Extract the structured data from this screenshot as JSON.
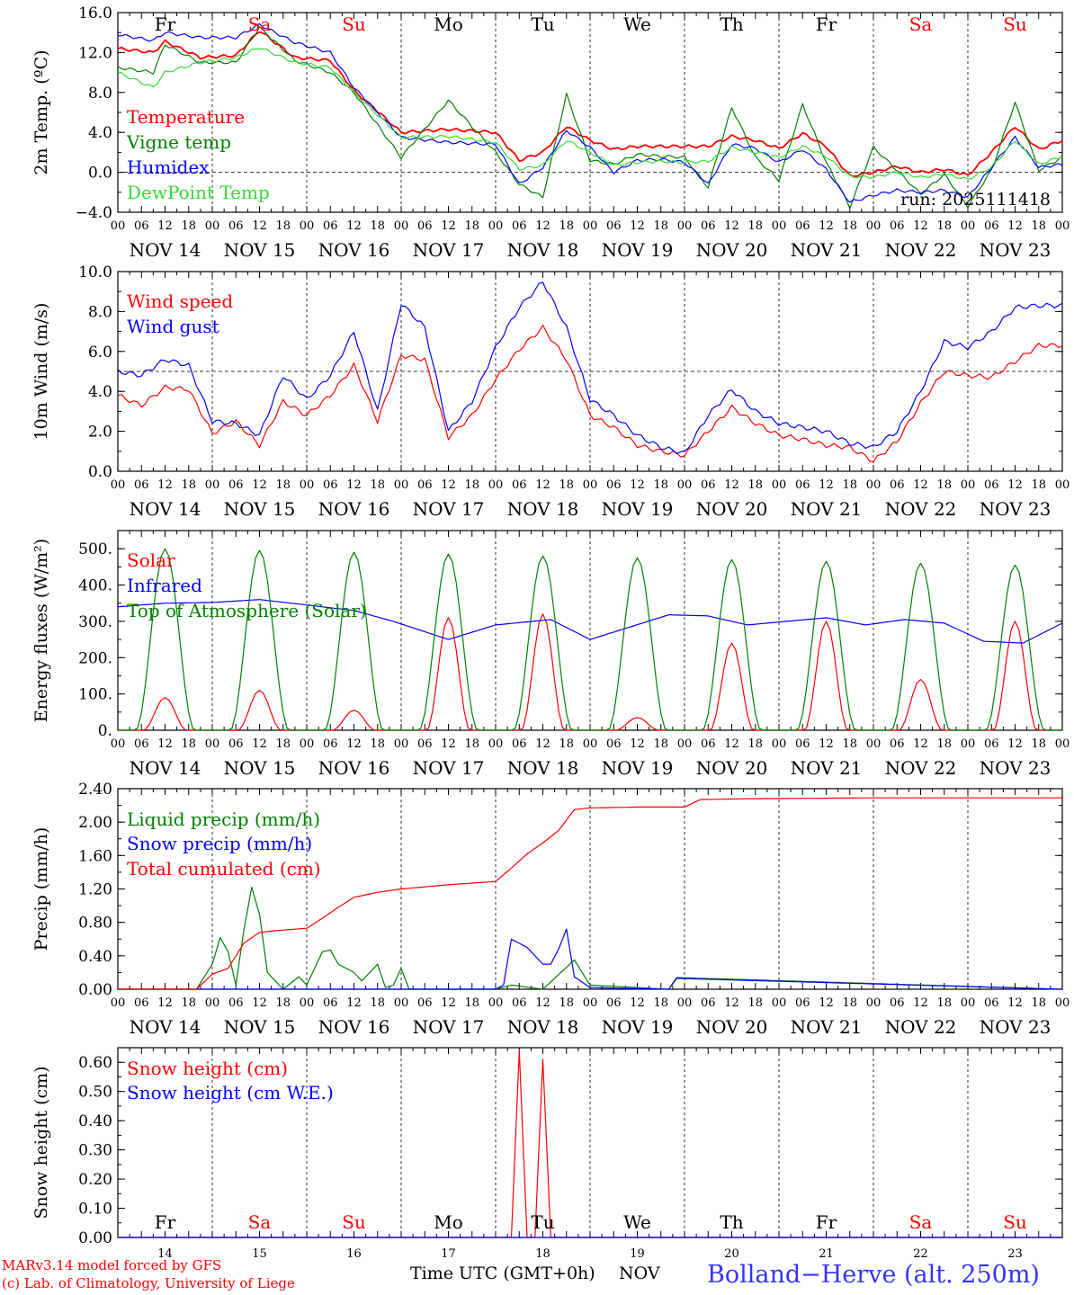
{
  "colors": {
    "red": "#ff0000",
    "green": "#008000",
    "blue": "#0000ff",
    "lime": "#33dd33",
    "black": "#000000"
  },
  "days": {
    "names": [
      "Fr",
      "Sa",
      "Su",
      "Mo",
      "Tu",
      "We",
      "Th",
      "Fr",
      "Sa",
      "Su"
    ],
    "weekend": [
      false,
      true,
      true,
      false,
      false,
      false,
      false,
      false,
      true,
      true
    ],
    "dates": [
      "NOV 14",
      "NOV 15",
      "NOV 16",
      "NOV 17",
      "NOV 18",
      "NOV 19",
      "NOV 20",
      "NOV 21",
      "NOV 22",
      "NOV 23"
    ],
    "numbers": [
      "14",
      "15",
      "16",
      "17",
      "18",
      "19",
      "20",
      "21",
      "22",
      "23"
    ],
    "hours": [
      "00",
      "06",
      "12",
      "18"
    ],
    "final_hour": "00"
  },
  "footer": {
    "model": "MARv3.14 model forced by GFS",
    "lab": "(c) Lab. of Climatology, University of Liege",
    "xlabel": "Time UTC (GMT+0h)",
    "month": "NOV",
    "station": "Bolland−Herve (alt. 250m)"
  },
  "chart_data": [
    {
      "type": "line",
      "title": "Temperature",
      "ylabel": "2m Temp. (ºC)",
      "ylim": [
        -4,
        16
      ],
      "yticks": [
        "16.0",
        "12.0",
        "8.0",
        "4.0",
        "0.0",
        "−4.0"
      ],
      "yticks_val": [
        16,
        12,
        8,
        4,
        0,
        -4
      ],
      "ref_line": 0,
      "run": "run: 2025111418",
      "x_hours": [
        0,
        9,
        12,
        21,
        30,
        36,
        45,
        54,
        60,
        72,
        84,
        96,
        102,
        108,
        114,
        120,
        126,
        132,
        138,
        144,
        150,
        156,
        162,
        168,
        174,
        180,
        186,
        192,
        198,
        204,
        210,
        216,
        222,
        228,
        234,
        240
      ],
      "series": [
        {
          "name": "Temperature",
          "color": "red",
          "values": [
            12.4,
            12.0,
            13.1,
            11.5,
            11.7,
            14.2,
            11.5,
            11.2,
            8.2,
            4.0,
            4.3,
            4.0,
            1.2,
            2.0,
            4.6,
            3.2,
            2.3,
            2.6,
            2.6,
            2.6,
            2.6,
            3.6,
            3.2,
            2.4,
            3.9,
            2.6,
            -0.4,
            0.0,
            0.6,
            0.0,
            0.3,
            -0.3,
            2.0,
            4.6,
            2.3,
            3.2
          ]
        },
        {
          "name": "Vigne temp",
          "color": "green",
          "values": [
            10.5,
            10.0,
            12.8,
            11.0,
            11.0,
            14.5,
            11.2,
            10.0,
            8.0,
            1.5,
            7.2,
            2.0,
            -1.2,
            -2.5,
            7.8,
            1.2,
            0.8,
            1.8,
            1.6,
            1.5,
            -1.5,
            6.5,
            1.5,
            -0.8,
            6.8,
            1.0,
            -3.5,
            2.5,
            0.2,
            -2.2,
            -0.2,
            -3.4,
            0.2,
            7.0,
            0.2,
            1.5
          ]
        },
        {
          "name": "Humidex",
          "color": "blue",
          "values": [
            13.8,
            13.2,
            14.0,
            13.5,
            13.5,
            14.8,
            13.0,
            12.0,
            8.5,
            3.5,
            3.0,
            2.8,
            -1.2,
            0.5,
            4.2,
            2.5,
            0.0,
            1.2,
            1.3,
            1.0,
            -1.2,
            2.8,
            2.4,
            1.0,
            2.3,
            0.3,
            -3.0,
            -2.3,
            -1.8,
            -2.0,
            -1.8,
            -2.5,
            0.5,
            3.5,
            0.5,
            0.8
          ]
        },
        {
          "name": "DewPoint Temp",
          "color": "lime",
          "values": [
            10.0,
            8.5,
            10.0,
            11.0,
            11.5,
            12.5,
            11.0,
            10.5,
            8.0,
            3.5,
            3.6,
            3.0,
            0.3,
            0.7,
            3.2,
            2.0,
            0.7,
            1.0,
            1.1,
            1.0,
            1.1,
            2.5,
            2.0,
            1.5,
            2.6,
            1.6,
            -0.4,
            -0.5,
            0.0,
            -0.5,
            -0.2,
            -0.7,
            0.5,
            3.2,
            0.8,
            1.6
          ]
        }
      ]
    },
    {
      "type": "line",
      "title": "Wind",
      "ylabel": "10m Wind (m/s)",
      "ylim": [
        0,
        10
      ],
      "yticks": [
        "10.0",
        "8.0",
        "6.0",
        "4.0",
        "2.0",
        "0.0"
      ],
      "yticks_val": [
        10,
        8,
        6,
        4,
        2,
        0
      ],
      "ref_line": 5,
      "x_hours": [
        0,
        6,
        12,
        18,
        24,
        30,
        36,
        42,
        48,
        54,
        60,
        66,
        72,
        78,
        84,
        90,
        96,
        102,
        108,
        114,
        120,
        126,
        132,
        138,
        144,
        150,
        156,
        162,
        168,
        174,
        180,
        186,
        192,
        198,
        204,
        210,
        216,
        222,
        228,
        234,
        240
      ],
      "series": [
        {
          "name": "Wind speed",
          "color": "red",
          "values": [
            3.8,
            3.3,
            4.2,
            4.1,
            1.9,
            2.5,
            1.3,
            3.5,
            2.8,
            3.8,
            5.3,
            2.5,
            5.8,
            5.6,
            1.7,
            2.8,
            4.6,
            6.1,
            7.2,
            5.6,
            2.8,
            2.2,
            1.3,
            1.0,
            0.8,
            2.0,
            3.2,
            2.4,
            1.8,
            1.6,
            1.3,
            1.2,
            0.5,
            1.5,
            3.4,
            5.0,
            4.8,
            4.7,
            5.5,
            6.3,
            6.3
          ]
        },
        {
          "name": "Wind gust",
          "color": "blue",
          "values": [
            5.0,
            4.8,
            5.6,
            5.3,
            2.5,
            2.4,
            1.8,
            4.8,
            3.6,
            4.8,
            7.0,
            3.0,
            8.4,
            7.2,
            2.0,
            3.5,
            6.2,
            8.2,
            9.5,
            7.2,
            3.6,
            2.8,
            1.8,
            1.2,
            0.9,
            2.8,
            4.1,
            3.0,
            2.4,
            2.2,
            2.0,
            1.4,
            1.2,
            2.0,
            4.0,
            6.5,
            6.2,
            7.0,
            8.2,
            8.3,
            8.3
          ]
        }
      ]
    },
    {
      "type": "line",
      "title": "Energy fluxes",
      "ylabel": "Energy fluxes (W/m²)",
      "ylim": [
        0,
        550
      ],
      "yticks": [
        "500.",
        "400.",
        "300.",
        "200.",
        "100.",
        "0."
      ],
      "yticks_val": [
        500,
        400,
        300,
        200,
        100,
        0
      ],
      "series": [
        {
          "name": "Solar",
          "color": "red",
          "peaks": [
            90,
            110,
            55,
            310,
            320,
            35,
            240,
            300,
            140,
            300
          ]
        },
        {
          "name": "Infrared",
          "color": "blue",
          "x_hours": [
            0,
            12,
            24,
            36,
            48,
            60,
            70,
            84,
            96,
            110,
            120,
            140,
            150,
            160,
            170,
            180,
            190,
            200,
            210,
            220,
            230,
            240
          ],
          "values": [
            340,
            350,
            352,
            360,
            345,
            330,
            300,
            250,
            290,
            305,
            250,
            318,
            315,
            290,
            300,
            310,
            290,
            305,
            295,
            245,
            240,
            295
          ]
        },
        {
          "name": "Top of Atmosphere (Solar)",
          "color": "green",
          "peaks": [
            500,
            495,
            490,
            485,
            480,
            475,
            470,
            465,
            460,
            455
          ]
        }
      ]
    },
    {
      "type": "line",
      "title": "Precip",
      "ylabel": "Precip (mm/h)",
      "ylim": [
        0,
        2.4
      ],
      "yticks": [
        "2.40",
        "2.00",
        "1.60",
        "1.20",
        "0.80",
        "0.40",
        "0.00"
      ],
      "yticks_val": [
        2.4,
        2.0,
        1.6,
        1.2,
        0.8,
        0.4,
        0.0
      ],
      "series": [
        {
          "name": "Liquid precip (mm/h)",
          "color": "green",
          "x_hours": [
            0,
            20,
            24,
            26,
            28,
            30,
            32,
            34,
            36,
            38,
            40,
            42,
            46,
            48,
            52,
            54,
            56,
            58,
            60,
            62,
            66,
            68,
            70,
            72,
            74,
            96,
            100,
            108,
            116,
            120,
            140,
            142,
            240
          ],
          "values": [
            0,
            0,
            0.3,
            0.62,
            0.45,
            0.05,
            0.7,
            1.22,
            0.9,
            0.2,
            0.1,
            0.0,
            0.15,
            0.05,
            0.45,
            0.47,
            0.3,
            0.25,
            0.2,
            0.1,
            0.3,
            0.02,
            0.05,
            0.25,
            0.0,
            0.0,
            0.05,
            0.0,
            0.35,
            0.05,
            0.0,
            0.14,
            0.0
          ]
        },
        {
          "name": "Snow precip (mm/h)",
          "color": "blue",
          "x_hours": [
            0,
            96,
            98,
            100,
            104,
            108,
            110,
            112,
            114,
            116,
            120,
            140,
            142,
            240
          ],
          "values": [
            0,
            0,
            0.05,
            0.6,
            0.5,
            0.3,
            0.3,
            0.48,
            0.72,
            0.15,
            0.02,
            0.0,
            0.13,
            0.0
          ]
        },
        {
          "name": "Total cumulated (cm)",
          "color": "red",
          "x_hours": [
            0,
            20,
            24,
            28,
            32,
            36,
            40,
            48,
            52,
            56,
            60,
            66,
            72,
            84,
            96,
            100,
            104,
            108,
            112,
            116,
            120,
            132,
            144,
            148,
            160,
            192,
            240
          ],
          "values": [
            0,
            0,
            0.18,
            0.25,
            0.55,
            0.68,
            0.7,
            0.73,
            0.85,
            0.98,
            1.1,
            1.16,
            1.2,
            1.25,
            1.29,
            1.45,
            1.62,
            1.75,
            1.9,
            2.15,
            2.17,
            2.18,
            2.18,
            2.27,
            2.28,
            2.29,
            2.29
          ]
        }
      ]
    },
    {
      "type": "line",
      "title": "Snow height",
      "ylabel": "Snow height (cm)",
      "ylim": [
        0,
        0.65
      ],
      "yticks": [
        "0.60",
        "0.50",
        "0.40",
        "0.30",
        "0.20",
        "0.10",
        "0.00"
      ],
      "yticks_val": [
        0.6,
        0.5,
        0.4,
        0.3,
        0.2,
        0.1,
        0.0
      ],
      "series": [
        {
          "name": "Snow height (cm)",
          "color": "red",
          "x_hours": [
            0,
            100,
            102,
            104,
            106,
            108,
            110,
            240
          ],
          "values": [
            0,
            0,
            0.64,
            0,
            0,
            0.61,
            0,
            0
          ]
        },
        {
          "name": "Snow height (cm W.E.)",
          "color": "blue",
          "x_hours": [
            0,
            240
          ],
          "values": [
            0,
            0
          ]
        }
      ]
    }
  ]
}
